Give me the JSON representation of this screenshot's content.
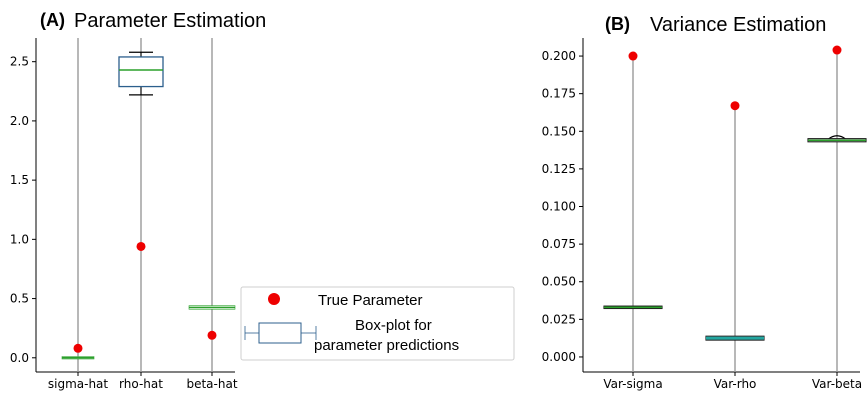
{
  "chart_data": [
    {
      "type": "box",
      "panel_label": "(A)",
      "title": "Parameter Estimation",
      "categories": [
        "sigma-hat",
        "rho-hat",
        "beta-hat"
      ],
      "ylim": [
        -0.12,
        2.7
      ],
      "yticks": [
        0.0,
        0.5,
        1.0,
        1.5,
        2.0,
        2.5
      ],
      "ytick_labels": [
        "0.0",
        "0.5",
        "1.0",
        "1.5",
        "2.0",
        "2.5"
      ],
      "boxes": [
        {
          "whisker_low": 0.0,
          "q1": 0.0,
          "median": 0.0,
          "q3": 0.0,
          "whisker_high": 0.0,
          "range_low": -0.12,
          "range_high": 2.7
        },
        {
          "whisker_low": 2.22,
          "q1": 2.29,
          "median": 2.43,
          "q3": 2.54,
          "whisker_high": 2.58,
          "range_low": -0.12,
          "range_high": 2.7
        },
        {
          "whisker_low": 0.42,
          "q1": 0.42,
          "median": 0.425,
          "q3": 0.43,
          "whisker_high": 0.43,
          "range_low": -0.12,
          "range_high": 2.7
        }
      ],
      "true_parameter": [
        0.08,
        0.94,
        0.19
      ]
    },
    {
      "type": "box",
      "panel_label": "(B)",
      "title": "Variance Estimation",
      "categories": [
        "Var-sigma",
        "Var-rho",
        "Var-beta"
      ],
      "ylim": [
        -0.01,
        0.212
      ],
      "yticks": [
        0.0,
        0.025,
        0.05,
        0.075,
        0.1,
        0.125,
        0.15,
        0.175,
        0.2
      ],
      "ytick_labels": [
        "0.000",
        "0.025",
        "0.050",
        "0.075",
        "0.100",
        "0.125",
        "0.150",
        "0.175",
        "0.200"
      ],
      "boxes": [
        {
          "whisker_low": 0.033,
          "q1": 0.033,
          "median": 0.033,
          "q3": 0.033,
          "whisker_high": 0.033,
          "range_low": -0.01,
          "range_high": 0.2
        },
        {
          "whisker_low": 0.0115,
          "q1": 0.012,
          "median": 0.0125,
          "q3": 0.013,
          "whisker_high": 0.0135,
          "range_low": -0.01,
          "range_high": 0.167
        },
        {
          "whisker_low": 0.1435,
          "q1": 0.1438,
          "median": 0.144,
          "q3": 0.1443,
          "whisker_high": 0.146,
          "range_low": -0.01,
          "range_high": 0.204
        }
      ],
      "true_parameter": [
        0.2,
        0.167,
        0.204
      ]
    }
  ],
  "legend": {
    "true_parameter_label": "True Parameter",
    "boxplot_label_line1": "Box-plot for",
    "boxplot_label_line2": "parameter predictions"
  },
  "colors": {
    "box_edge": "#2c5f8d",
    "median": "#2ca02c",
    "true_point": "#ee0000",
    "range_line": "#9a9a9a"
  }
}
